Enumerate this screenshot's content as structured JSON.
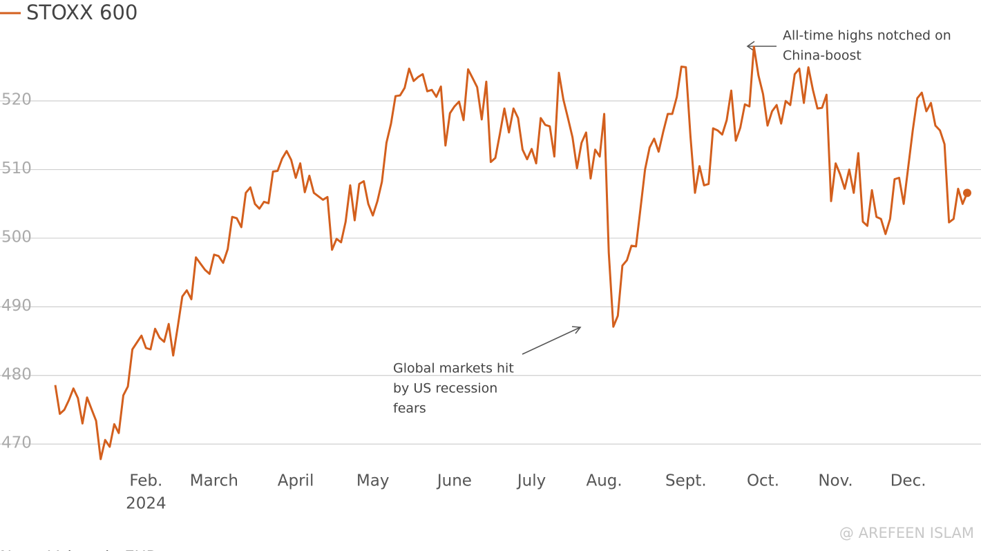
{
  "chart_data": {
    "type": "line",
    "series": [
      {
        "name": "STOXX 600",
        "color": "#d35f1d",
        "values": [
          478.6,
          474.4,
          475,
          476.4,
          478.1,
          476.7,
          473,
          476.8,
          475.1,
          473.4,
          467.8,
          470.6,
          469.6,
          472.9,
          471.6,
          477.1,
          478.4,
          483.8,
          484.8,
          485.8,
          484,
          483.8,
          486.8,
          485.5,
          484.9,
          487.5,
          482.9,
          487.1,
          491.5,
          492.4,
          491.1,
          497.2,
          496.3,
          495.4,
          494.8,
          497.6,
          497.4,
          496.4,
          498.4,
          503.1,
          502.9,
          501.6,
          506.6,
          507.4,
          505,
          504.3,
          505.3,
          505.1,
          509.7,
          509.8,
          511.6,
          512.7,
          511.4,
          508.8,
          510.9,
          506.7,
          509.1,
          506.6,
          506.1,
          505.6,
          506,
          498.3,
          499.9,
          499.4,
          502.4,
          507.7,
          502.6,
          507.9,
          508.3,
          505,
          503.3,
          505.4,
          508.2,
          513.9,
          516.7,
          520.7,
          520.8,
          521.9,
          524.7,
          522.9,
          523.5,
          523.9,
          521.4,
          521.6,
          520.6,
          522.1,
          513.5,
          518.2,
          519.2,
          519.9,
          517.2,
          524.6,
          523.3,
          522,
          517.3,
          522.8,
          511.1,
          511.7,
          515.2,
          518.9,
          515.4,
          518.9,
          517.5,
          512.9,
          511.5,
          513,
          510.9,
          517.5,
          516.5,
          516.3,
          511.9,
          524.1,
          520.2,
          517.5,
          514.7,
          510.2,
          513.9,
          515.4,
          508.7,
          512.9,
          511.9,
          518.1,
          497.9,
          487.1,
          488.7,
          496,
          496.8,
          498.9,
          498.8,
          504.4,
          510,
          513.2,
          514.5,
          512.6,
          515.5,
          518.1,
          518.1,
          520.6,
          525,
          524.9,
          514.9,
          506.6,
          510.5,
          507.7,
          507.9,
          516,
          515.7,
          515.1,
          517.2,
          521.5,
          514.2,
          516.1,
          519.5,
          519.2,
          527.9,
          523.7,
          521,
          516.4,
          518.5,
          519.4,
          516.7,
          520,
          519.4,
          523.9,
          524.7,
          519.7,
          524.9,
          521.6,
          518.9,
          519,
          520.9,
          505.4,
          510.9,
          509.3,
          507.2,
          510,
          506.6,
          512.4,
          502.4,
          501.8,
          507,
          503.1,
          502.8,
          500.6,
          502.8,
          508.6,
          508.8,
          505,
          510.3,
          515.7,
          520.4,
          521.2,
          518.5,
          519.7,
          516.4,
          515.7,
          513.7,
          502.3,
          502.8,
          507.2,
          505,
          506.6
        ]
      }
    ],
    "categories": [
      null,
      null,
      null,
      null,
      null,
      null,
      null,
      null,
      null,
      null,
      null,
      null,
      null,
      null,
      null,
      null,
      null,
      null,
      null,
      null,
      "Feb.",
      null,
      null,
      null,
      null,
      null,
      null,
      null,
      null,
      null,
      null,
      null,
      null,
      null,
      null,
      "March",
      null,
      null,
      null,
      null,
      null,
      null,
      null,
      null,
      null,
      null,
      null,
      null,
      null,
      null,
      null,
      null,
      null,
      "April",
      null,
      null,
      null,
      null,
      null,
      null,
      null,
      null,
      null,
      null,
      null,
      null,
      null,
      null,
      null,
      null,
      "May",
      null,
      null,
      null,
      null,
      null,
      null,
      null,
      null,
      null,
      null,
      null,
      null,
      null,
      null,
      null,
      null,
      null,
      "June",
      null,
      null,
      null,
      null,
      null,
      null,
      null,
      null,
      null,
      null,
      null,
      null,
      null,
      null,
      null,
      null,
      "July",
      null,
      null,
      null,
      null,
      null,
      null,
      null,
      null,
      null,
      null,
      null,
      null,
      null,
      null,
      null,
      "Aug.",
      null,
      null,
      null,
      null,
      null,
      null,
      null,
      null,
      null,
      null,
      null,
      null,
      null,
      null,
      null,
      null,
      null,
      "Sept.",
      null,
      null,
      null,
      null,
      null,
      null,
      null,
      null,
      null,
      null,
      null,
      null,
      null,
      null,
      null,
      null,
      "Oct.",
      null,
      null,
      null,
      null,
      null,
      null,
      null,
      null,
      null,
      null,
      null,
      null,
      null,
      null,
      null,
      "Nov.",
      null,
      null,
      null,
      null,
      null,
      null,
      null,
      null,
      null,
      null,
      null,
      null,
      null,
      null,
      null,
      "Dec.",
      null,
      null,
      null,
      null,
      null,
      null,
      null,
      null,
      null,
      null,
      null,
      null,
      null
    ],
    "year_label": "2024",
    "ylim": [
      467.5,
      530.5
    ],
    "yticks": [
      470,
      480,
      490,
      500,
      510,
      520
    ],
    "grid": true,
    "annotations": [
      {
        "lines": [
          "All-time highs notched on",
          "China-boost"
        ]
      },
      {
        "lines": [
          "Global markets hit",
          "by US recession",
          "fears"
        ]
      }
    ],
    "note": "Note: Values in EUR",
    "watermark": "@ AREFEEN ISLAM"
  }
}
